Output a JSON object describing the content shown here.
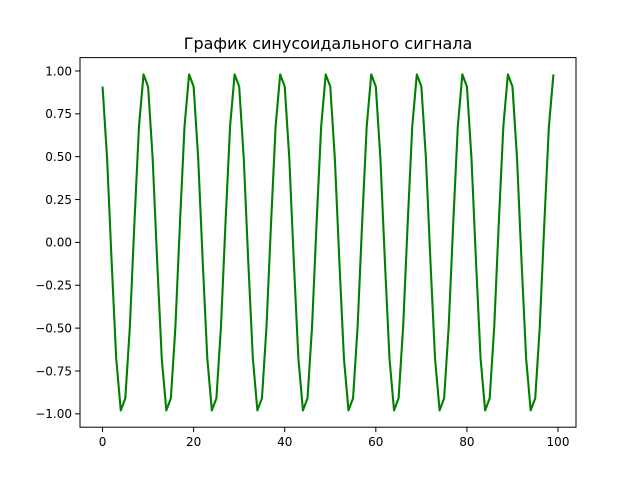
{
  "chart_data": {
    "type": "line",
    "title": "График синусоидального сигнала",
    "xlabel": "",
    "ylabel": "",
    "xlim": [
      -4.95,
      103.95
    ],
    "ylim": [
      -1.078,
      1.078
    ],
    "xticks": [
      0,
      20,
      40,
      60,
      80,
      100
    ],
    "xtick_labels": [
      "0",
      "20",
      "40",
      "60",
      "80",
      "100"
    ],
    "yticks": [
      -1.0,
      -0.75,
      -0.5,
      -0.25,
      0.0,
      0.25,
      0.5,
      0.75,
      1.0
    ],
    "ytick_labels": [
      "−1.00",
      "−0.75",
      "−0.50",
      "−0.25",
      "0.00",
      "0.25",
      "0.50",
      "0.75",
      "1.00"
    ],
    "grid": false,
    "colors": {
      "line": "#008000"
    },
    "series": [
      {
        "x": [
          0,
          1,
          2,
          3,
          4,
          5,
          6,
          7,
          8,
          9,
          10,
          11,
          12,
          13,
          14,
          15,
          16,
          17,
          18,
          19,
          20,
          21,
          22,
          23,
          24,
          25,
          26,
          27,
          28,
          29,
          30,
          31,
          32,
          33,
          34,
          35,
          36,
          37,
          38,
          39,
          40,
          41,
          42,
          43,
          44,
          45,
          46,
          47,
          48,
          49,
          50,
          51,
          52,
          53,
          54,
          55,
          56,
          57,
          58,
          59,
          60,
          61,
          62,
          63,
          64,
          65,
          66,
          67,
          68,
          69,
          70,
          71,
          72,
          73,
          74,
          75,
          76,
          77,
          78,
          79,
          80,
          81,
          82,
          83,
          84,
          85,
          86,
          87,
          88,
          89,
          90,
          91,
          92,
          93,
          94,
          95,
          96,
          97,
          98,
          99
        ],
        "values": [
          0.909,
          0.491,
          -0.115,
          -0.677,
          -0.98,
          -0.909,
          -0.491,
          0.115,
          0.677,
          0.98,
          0.909,
          0.491,
          -0.115,
          -0.677,
          -0.98,
          -0.909,
          -0.491,
          0.115,
          0.677,
          0.98,
          0.909,
          0.491,
          -0.115,
          -0.677,
          -0.98,
          -0.909,
          -0.491,
          0.115,
          0.677,
          0.98,
          0.909,
          0.491,
          -0.115,
          -0.677,
          -0.98,
          -0.909,
          -0.491,
          0.115,
          0.677,
          0.98,
          0.909,
          0.491,
          -0.115,
          -0.677,
          -0.98,
          -0.909,
          -0.491,
          0.115,
          0.677,
          0.98,
          0.909,
          0.491,
          -0.115,
          -0.677,
          -0.98,
          -0.909,
          -0.491,
          0.115,
          0.677,
          0.98,
          0.909,
          0.491,
          -0.115,
          -0.677,
          -0.98,
          -0.909,
          -0.491,
          0.115,
          0.677,
          0.98,
          0.909,
          0.491,
          -0.115,
          -0.677,
          -0.98,
          -0.909,
          -0.491,
          0.115,
          0.677,
          0.98,
          0.909,
          0.491,
          -0.115,
          -0.677,
          -0.98,
          -0.909,
          -0.491,
          0.115,
          0.677,
          0.98,
          0.909,
          0.491,
          -0.115,
          -0.677,
          -0.98,
          -0.909,
          -0.491,
          0.115,
          0.677,
          0.98
        ]
      }
    ]
  }
}
